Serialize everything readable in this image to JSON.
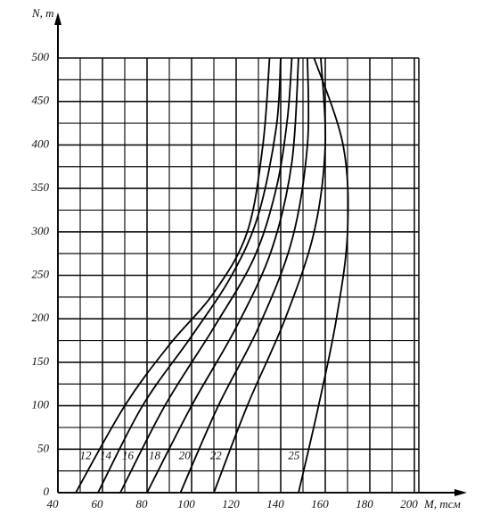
{
  "chart_data": {
    "type": "line",
    "y_label": "N, m",
    "x_label": "M, тсм",
    "xlim": [
      40,
      202
    ],
    "xticks": [
      40,
      60,
      80,
      100,
      120,
      140,
      160,
      180,
      200
    ],
    "ylim": [
      0,
      500
    ],
    "yticks": [
      0,
      50,
      100,
      150,
      200,
      250,
      300,
      350,
      400,
      450,
      500
    ],
    "grid": true,
    "color": "#000000",
    "series": [
      {
        "name": "12",
        "x": [
          48,
          70,
          90,
          110,
          125,
          132,
          135
        ],
        "values": [
          0,
          100,
          170,
          230,
          300,
          400,
          500
        ]
      },
      {
        "name": "14",
        "x": [
          58,
          78,
          100,
          118,
          130,
          138,
          140
        ],
        "values": [
          0,
          100,
          180,
          250,
          320,
          420,
          500
        ]
      },
      {
        "name": "16",
        "x": [
          68,
          88,
          110,
          128,
          138,
          143,
          145
        ],
        "values": [
          0,
          100,
          190,
          270,
          350,
          430,
          500
        ]
      },
      {
        "name": "18",
        "x": [
          80,
          100,
          120,
          136,
          145,
          148
        ],
        "values": [
          0,
          100,
          190,
          280,
          380,
          500
        ]
      },
      {
        "name": "20",
        "x": [
          95,
          112,
          130,
          145,
          152,
          152
        ],
        "values": [
          0,
          100,
          190,
          290,
          400,
          500
        ]
      },
      {
        "name": "22",
        "x": [
          110,
          125,
          142,
          155,
          160,
          158
        ],
        "values": [
          0,
          100,
          200,
          300,
          400,
          500
        ]
      },
      {
        "name": "25",
        "x": [
          148,
          157,
          165,
          170,
          168,
          155
        ],
        "values": [
          0,
          100,
          200,
          300,
          400,
          500
        ]
      }
    ]
  }
}
